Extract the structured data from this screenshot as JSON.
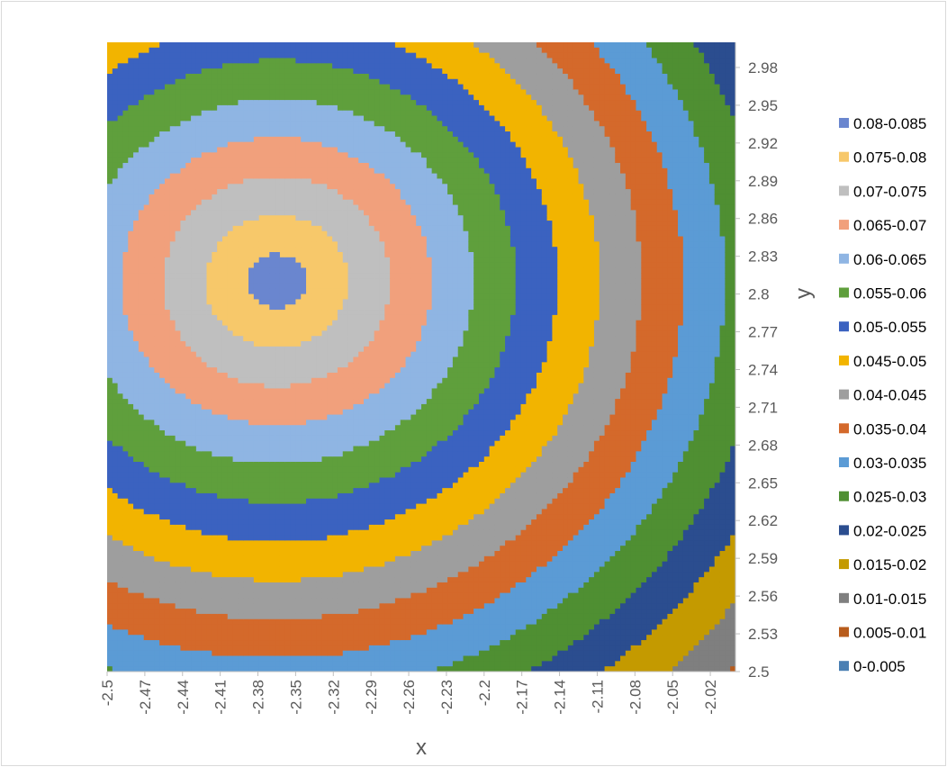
{
  "chart_data": {
    "type": "heatmap",
    "subtype": "contour",
    "xlabel": "x",
    "ylabel": "y",
    "xlim": [
      -2.5,
      -2.0
    ],
    "ylim": [
      2.5,
      3.0
    ],
    "x_ticks": [
      "-2.5",
      "-2.47",
      "-2.44",
      "-2.41",
      "-2.38",
      "-2.35",
      "-2.32",
      "-2.29",
      "-2.26",
      "-2.23",
      "-2.2",
      "-2.17",
      "-2.14",
      "-2.11",
      "-2.08",
      "-2.05",
      "-2.02"
    ],
    "y_ticks": [
      "2.5",
      "2.53",
      "2.56",
      "2.59",
      "2.62",
      "2.65",
      "2.68",
      "2.71",
      "2.74",
      "2.77",
      "2.8",
      "2.83",
      "2.86",
      "2.89",
      "2.92",
      "2.95",
      "2.98"
    ],
    "x_tick_values": [
      -2.5,
      -2.47,
      -2.44,
      -2.41,
      -2.38,
      -2.35,
      -2.32,
      -2.29,
      -2.26,
      -2.23,
      -2.2,
      -2.17,
      -2.14,
      -2.11,
      -2.08,
      -2.05,
      -2.02
    ],
    "y_tick_values": [
      2.5,
      2.53,
      2.56,
      2.59,
      2.62,
      2.65,
      2.68,
      2.71,
      2.74,
      2.77,
      2.8,
      2.83,
      2.86,
      2.89,
      2.92,
      2.95,
      2.98
    ],
    "surface": {
      "peak": {
        "x": -2.365,
        "y": 2.81,
        "value": 0.0835
      },
      "peak_value": 0.0835,
      "decay_per_unit": 0.375,
      "aspect_x": 1.0,
      "aspect_y": 1.08
    },
    "legend_position": "right",
    "legend": [
      {
        "label": "0.08-0.085",
        "min": 0.08,
        "max": 0.085,
        "color": "#6a86cf"
      },
      {
        "label": "0.075-0.08",
        "min": 0.075,
        "max": 0.08,
        "color": "#f7c86a"
      },
      {
        "label": "0.07-0.075",
        "min": 0.07,
        "max": 0.075,
        "color": "#bfbfbf"
      },
      {
        "label": "0.065-0.07",
        "min": 0.065,
        "max": 0.07,
        "color": "#f1a07c"
      },
      {
        "label": "0.06-0.065",
        "min": 0.06,
        "max": 0.065,
        "color": "#8fb5e3"
      },
      {
        "label": "0.055-0.06",
        "min": 0.055,
        "max": 0.06,
        "color": "#5f9f3c"
      },
      {
        "label": "0.05-0.055",
        "min": 0.05,
        "max": 0.055,
        "color": "#3b62c0"
      },
      {
        "label": "0.045-0.05",
        "min": 0.045,
        "max": 0.05,
        "color": "#f2b400"
      },
      {
        "label": "0.04-0.045",
        "min": 0.04,
        "max": 0.045,
        "color": "#9e9e9e"
      },
      {
        "label": "0.035-0.04",
        "min": 0.035,
        "max": 0.04,
        "color": "#d4692b"
      },
      {
        "label": "0.03-0.035",
        "min": 0.03,
        "max": 0.035,
        "color": "#5b9bd5"
      },
      {
        "label": "0.025-0.03",
        "min": 0.025,
        "max": 0.03,
        "color": "#4f8f32"
      },
      {
        "label": "0.02-0.025",
        "min": 0.02,
        "max": 0.025,
        "color": "#2b4d8f"
      },
      {
        "label": "0.015-0.02",
        "min": 0.015,
        "max": 0.02,
        "color": "#c49a00"
      },
      {
        "label": "0.01-0.015",
        "min": 0.01,
        "max": 0.015,
        "color": "#7f7f7f"
      },
      {
        "label": "0.005-0.01",
        "min": 0.005,
        "max": 0.01,
        "color": "#b85c1c"
      },
      {
        "label": "0-0.005",
        "min": 0.0,
        "max": 0.005,
        "color": "#4a7fb3"
      }
    ]
  }
}
